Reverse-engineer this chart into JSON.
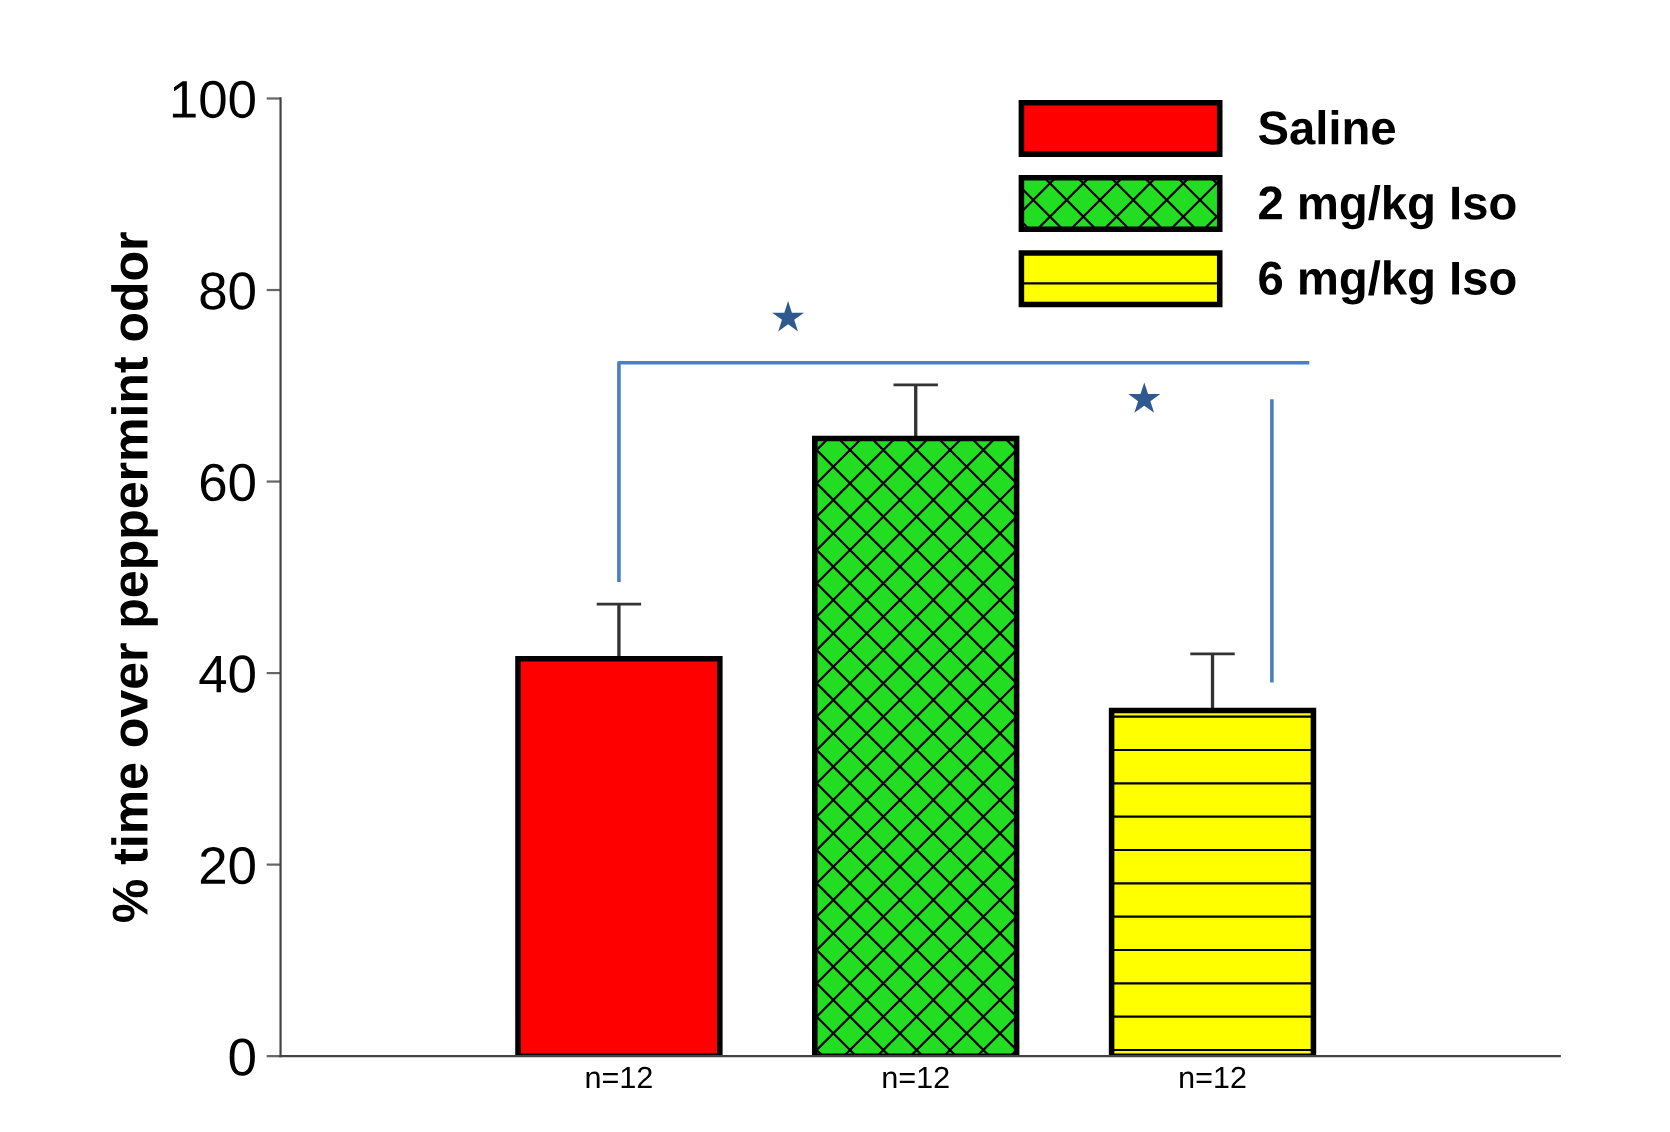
{
  "chart_data": {
    "type": "bar",
    "ylabel": "% time over peppermint odor",
    "categories": [
      "n=12",
      "n=12",
      "n=12"
    ],
    "series": [
      {
        "name": "Saline",
        "color": "#ff0000",
        "values": [
          41.5,
          null,
          null
        ],
        "errors": [
          5.7,
          null,
          null
        ]
      },
      {
        "name": "2 mg/kg Iso",
        "color": "#22dd22",
        "values": [
          null,
          64.5,
          null
        ],
        "errors": [
          null,
          5.6,
          null
        ]
      },
      {
        "name": "6 mg/kg Iso",
        "color": "#ffff00",
        "values": [
          null,
          null,
          36.1
        ],
        "errors": [
          null,
          null,
          5.9
        ]
      }
    ],
    "ylim": [
      0,
      100
    ],
    "yticks": [
      0,
      20,
      40,
      60,
      80,
      100
    ],
    "legend": "top right",
    "grid": false,
    "annotations": [
      "★",
      "★"
    ]
  }
}
